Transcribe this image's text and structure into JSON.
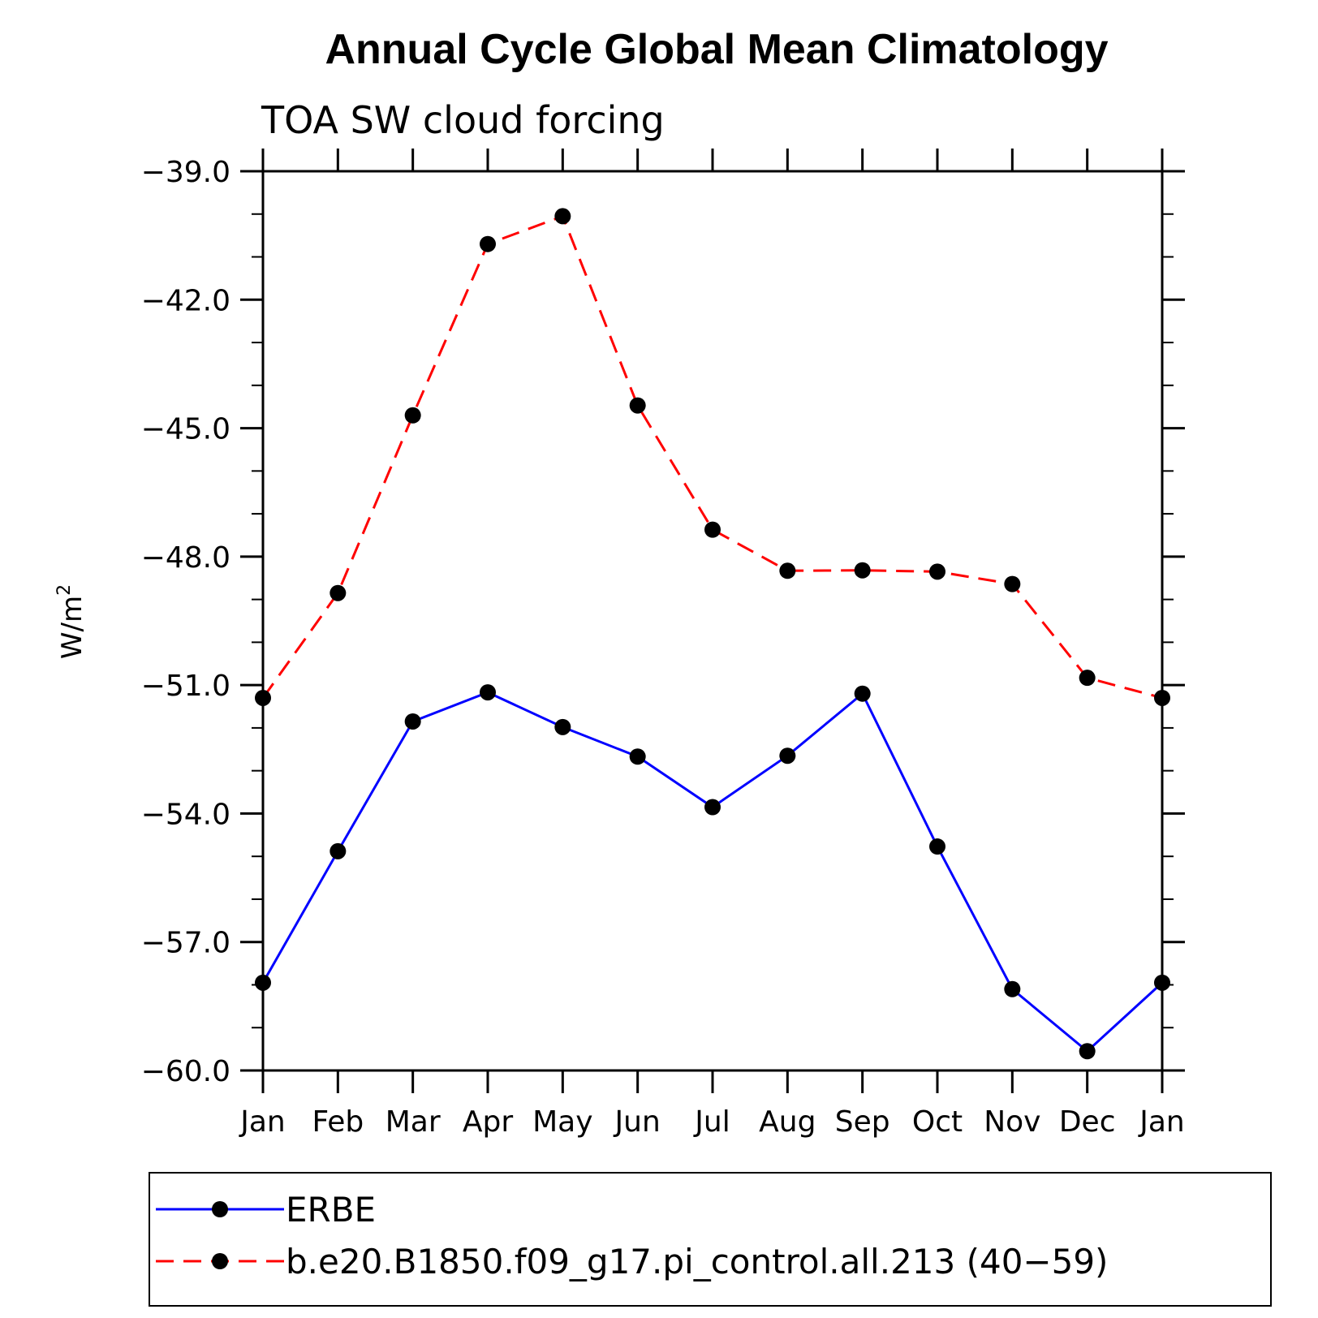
{
  "chart_data": {
    "type": "line",
    "title": "Annual Cycle Global Mean Climatology",
    "subtitle": "TOA SW cloud forcing",
    "ylabel_base": "W/m",
    "ylabel_sup": "2",
    "xlabel": "",
    "categories": [
      "Jan",
      "Feb",
      "Mar",
      "Apr",
      "May",
      "Jun",
      "Jul",
      "Aug",
      "Sep",
      "Oct",
      "Nov",
      "Dec",
      "Jan"
    ],
    "ylim": [
      -60.0,
      -39.0
    ],
    "yticks": [
      "-39.0",
      "-42.0",
      "-45.0",
      "-48.0",
      "-51.0",
      "-54.0",
      "-57.0",
      "-60.0"
    ],
    "ytick_values": [
      -39.0,
      -42.0,
      -45.0,
      -48.0,
      -51.0,
      -54.0,
      -57.0,
      -60.0
    ],
    "minor_step": 1.0,
    "legend_position": "bottom",
    "series": [
      {
        "name": "ERBE",
        "color": "#0000ff",
        "dash": "solid",
        "values": [
          -57.95,
          -54.88,
          -51.85,
          -51.17,
          -51.98,
          -52.67,
          -53.85,
          -52.65,
          -51.2,
          -54.77,
          -58.1,
          -59.55,
          -57.95
        ]
      },
      {
        "name": "b.e20.B1850.f09_g17.pi_control.all.213 (40−59)",
        "color": "#ff0000",
        "dash": "dashed",
        "values": [
          -51.3,
          -48.85,
          -44.7,
          -40.7,
          -40.05,
          -44.47,
          -47.37,
          -48.33,
          -48.32,
          -48.35,
          -48.64,
          -50.83,
          -51.3
        ]
      }
    ]
  }
}
